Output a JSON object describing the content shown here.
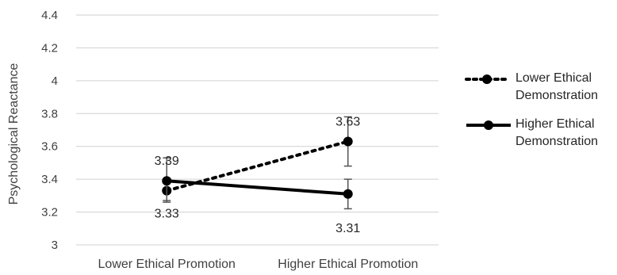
{
  "chart_data": {
    "type": "line",
    "title": "",
    "xlabel": "",
    "ylabel": "Psychological Reactance",
    "ylim": [
      3,
      4.4
    ],
    "yticks": [
      "3",
      "3.2",
      "3.4",
      "3.6",
      "3.8",
      "4",
      "4.2",
      "4.4"
    ],
    "categories": [
      "Lower Ethical Promotion",
      "Higher Ethical Promotion"
    ],
    "grid": true,
    "legend_position": "right",
    "series": [
      {
        "name": "Lower Ethical Demonstration",
        "style": "dotted",
        "color": "#000000",
        "values": [
          3.33,
          3.63
        ],
        "labels": [
          "3.33",
          "3.63"
        ],
        "error_low": [
          3.27,
          3.48
        ],
        "error_high": [
          3.39,
          3.78
        ]
      },
      {
        "name": "Higher Ethical Demonstration",
        "style": "solid",
        "color": "#000000",
        "values": [
          3.39,
          3.31
        ],
        "labels": [
          "3.39",
          "3.31"
        ],
        "error_low": [
          3.26,
          3.22
        ],
        "error_high": [
          3.53,
          3.4
        ]
      }
    ]
  }
}
